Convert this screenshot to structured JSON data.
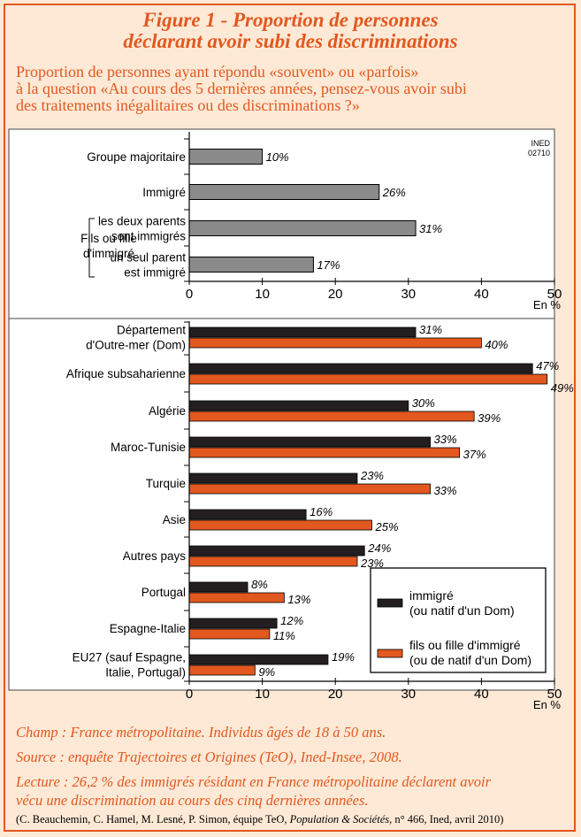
{
  "title_line1": "Figure 1 - Proportion de personnes",
  "title_line2": "déclarant avoir subi des discriminations",
  "subtitle_line1": "Proportion de personnes ayant répondu «souvent» ou «parfois»",
  "subtitle_line2": "à la question «Au cours des 5 dernières années, pensez-vous avoir subi",
  "subtitle_line3": "des traitements inégalitaires ou des discriminations ?»",
  "watermark_line1": "INED",
  "watermark_line2": "02710",
  "axis_unit": "En %",
  "group_label_line1": "Fils ou fille",
  "group_label_line2": "d'immigré",
  "colors": {
    "gray_bar": "#8a8a8a",
    "immigre": "#231f20",
    "enfant": "#e2581f",
    "accent": "#e2581f",
    "background": "#fde9d6"
  },
  "chart_data": [
    {
      "type": "bar",
      "orientation": "horizontal",
      "categories": [
        [
          "Groupe majoritaire"
        ],
        [
          "Immigré"
        ],
        [
          "les deux parents",
          "sont immigrés"
        ],
        [
          "un seul parent",
          "est immigré"
        ]
      ],
      "values": [
        10,
        26,
        31,
        17
      ],
      "value_labels": [
        "10%",
        "26%",
        "31%",
        "17%"
      ],
      "xlim": [
        0,
        50
      ],
      "xticks": [
        0,
        10,
        20,
        30,
        40,
        50
      ],
      "xlabel": "En %",
      "grid": false
    },
    {
      "type": "bar",
      "orientation": "horizontal",
      "categories": [
        [
          "Département",
          "d'Outre-mer (Dom)"
        ],
        [
          "Afrique subsaharienne"
        ],
        [
          "Algérie"
        ],
        [
          "Maroc-Tunisie"
        ],
        [
          "Turquie"
        ],
        [
          "Asie"
        ],
        [
          "Autres pays"
        ],
        [
          "Portugal"
        ],
        [
          "Espagne-Italie"
        ],
        [
          "EU27 (sauf Espagne,",
          "Italie, Portugal)"
        ]
      ],
      "series": [
        {
          "name": [
            "immigré",
            "(ou natif d'un Dom)"
          ],
          "values": [
            31,
            47,
            30,
            33,
            23,
            16,
            24,
            8,
            12,
            19
          ],
          "labels": [
            "31%",
            "47%",
            "30%",
            "33%",
            "23%",
            "16%",
            "24%",
            "8%",
            "12%",
            "19%"
          ]
        },
        {
          "name": [
            "fils ou fille d'immigré",
            "(ou de natif d'un Dom)"
          ],
          "values": [
            40,
            49,
            39,
            37,
            33,
            25,
            23,
            13,
            11,
            9
          ],
          "labels": [
            "40%",
            "49%",
            "39%",
            "37%",
            "33%",
            "25%",
            "23%",
            "13%",
            "11%",
            "9%"
          ]
        }
      ],
      "xlim": [
        0,
        50
      ],
      "xticks": [
        0,
        10,
        20,
        30,
        40,
        50
      ],
      "xlabel": "En %",
      "legend": "bottom-right",
      "grid": false
    }
  ],
  "champ": "Champ : France métropolitaine. Individus âgés de 18 à 50 ans.",
  "source": "Source : enquête Trajectoires et Origines (TeO), Ined-Insee, 2008.",
  "lecture_line1": "Lecture : 26,2 % des immigrés résidant en France métropolitaine déclarent avoir",
  "lecture_line2": "vécu une discrimination au cours des cinq dernières années.",
  "credit_pre": "(C. Beauchemin, C. Hamel, M. Lesné, P. Simon, équipe TeO, ",
  "credit_journal": "Population & Sociétés",
  "credit_post": ", n° 466, Ined, avril 2010)"
}
